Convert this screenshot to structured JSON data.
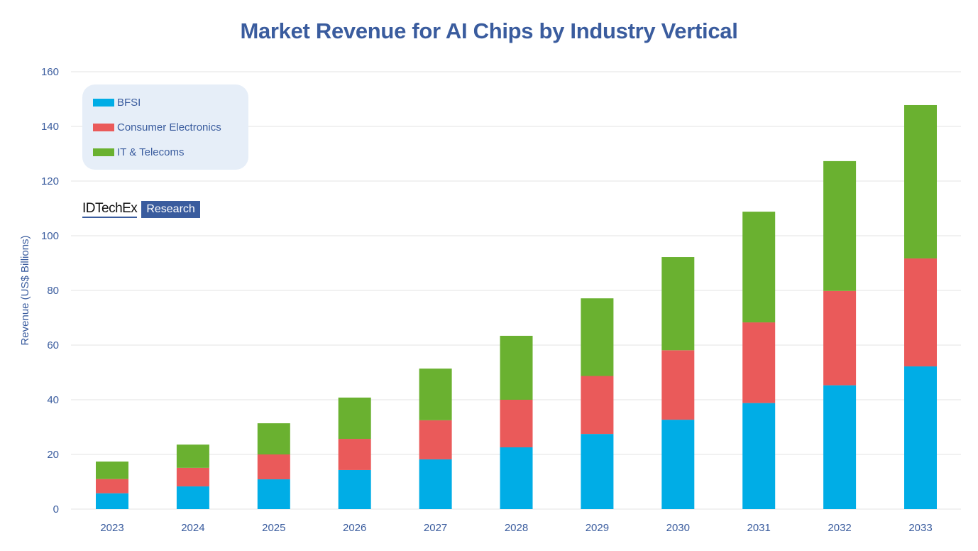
{
  "chart_data": {
    "type": "bar",
    "stacked": true,
    "title": "Market Revenue for AI Chips by Industry Vertical",
    "xlabel": "",
    "ylabel": "Revenue (US$ Billions)",
    "ylim": [
      0,
      160
    ],
    "yticks": [
      0,
      20,
      40,
      60,
      80,
      100,
      120,
      140,
      160
    ],
    "grid": true,
    "legend_position": "top-left",
    "categories": [
      "2023",
      "2024",
      "2025",
      "2026",
      "2027",
      "2028",
      "2029",
      "2030",
      "2031",
      "2032",
      "2033"
    ],
    "series": [
      {
        "name": "BFSI",
        "color": "#00ade6",
        "values": [
          5.8,
          8.3,
          10.9,
          14.3,
          18.2,
          22.6,
          27.5,
          32.7,
          38.8,
          45.3,
          52.2
        ]
      },
      {
        "name": "Consumer Electronics",
        "color": "#ea5a5a",
        "values": [
          5.2,
          6.8,
          9.1,
          11.4,
          14.3,
          17.4,
          21.2,
          25.4,
          29.5,
          34.5,
          39.5
        ]
      },
      {
        "name": "IT & Telecoms",
        "color": "#6ab130",
        "values": [
          6.4,
          8.5,
          11.4,
          15.1,
          18.9,
          23.4,
          28.4,
          34.1,
          40.5,
          47.5,
          56.1
        ]
      }
    ]
  },
  "legend": {
    "items": [
      {
        "label": "BFSI",
        "color": "#00ade6"
      },
      {
        "label": "Consumer Electronics",
        "color": "#ea5a5a"
      },
      {
        "label": "IT & Telecoms",
        "color": "#6ab130"
      }
    ]
  },
  "logo": {
    "brand": "IDTechEx",
    "tag": "Research",
    "brand_color": "#3a5c9e"
  },
  "colors": {
    "text": "#3a5c9e",
    "grid": "#e3e3e3"
  }
}
